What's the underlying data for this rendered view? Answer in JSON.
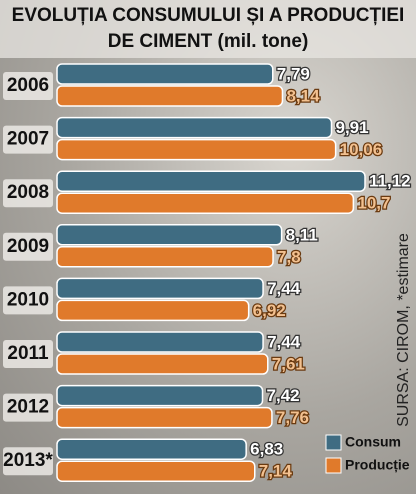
{
  "chart_data": {
    "type": "bar",
    "orientation": "horizontal",
    "title": [
      "EVOLUȚIA CONSUMULUI ȘI A PRODUCȚIEI",
      "DE CIMENT (mil. tone)"
    ],
    "categories": [
      "2006",
      "2007",
      "2008",
      "2009",
      "2010",
      "2011",
      "2012",
      "2013*"
    ],
    "series": [
      {
        "name": "Consum",
        "color": "#3f6c82",
        "values": [
          7.79,
          9.91,
          11.12,
          8.11,
          7.44,
          7.44,
          7.42,
          6.83
        ],
        "value_labels": [
          "7,79",
          "9,91",
          "11,12",
          "8,11",
          "7,44",
          "7,44",
          "7,42",
          "6,83"
        ]
      },
      {
        "name": "Producție",
        "color": "#e07a2b",
        "values": [
          8.14,
          10.06,
          10.7,
          7.8,
          6.92,
          7.61,
          7.76,
          7.14
        ],
        "value_labels": [
          "8,14",
          "10,06",
          "10,7",
          "7,8",
          "6,92",
          "7,61",
          "7,76",
          "7,14"
        ]
      }
    ],
    "source": "SURSA: CIROM, *estimare"
  }
}
